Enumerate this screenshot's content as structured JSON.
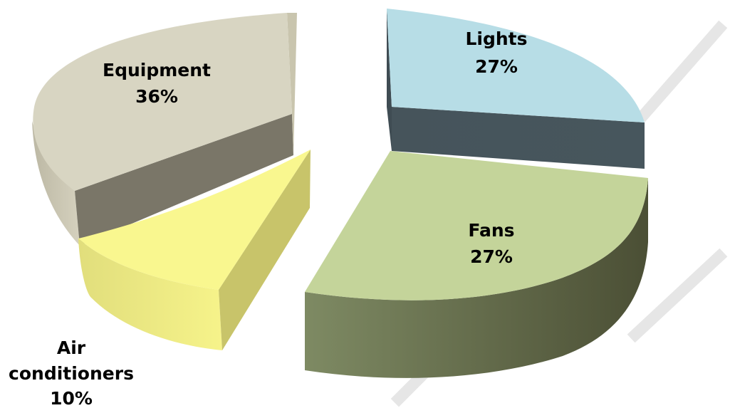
{
  "chart_data": {
    "type": "pie",
    "style": "3d-exploded",
    "title": "",
    "slices": [
      {
        "label": "Lights",
        "percent_label": "27%",
        "value": 27,
        "color": "#b7dde6"
      },
      {
        "label": "Fans",
        "percent_label": "27%",
        "value": 27,
        "color": "#c4d49a"
      },
      {
        "label": "Air conditioners",
        "label_lines": [
          "Air",
          "conditioners"
        ],
        "percent_label": "10%",
        "value": 10,
        "color": "#f9f78f"
      },
      {
        "label": "Equipment",
        "percent_label": "36%",
        "value": 36,
        "color": "#d8d5c2"
      }
    ],
    "legend": "none"
  },
  "colors": {
    "background": "#ffffff",
    "label_text": "#000000",
    "watermark": "#e6e6e6"
  }
}
